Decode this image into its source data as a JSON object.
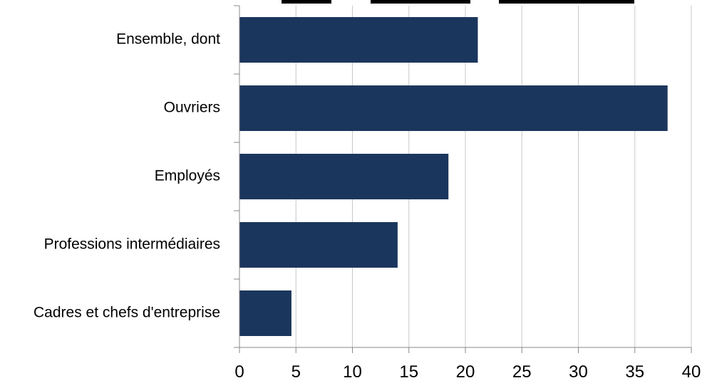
{
  "chart_data": {
    "type": "bar",
    "orientation": "horizontal",
    "title": "",
    "xlabel": "",
    "ylabel": "",
    "categories": [
      "Ensemble, dont",
      "Ouvriers",
      "Employés",
      "Professions intermédiaires",
      "Cadres et chefs d'entreprise"
    ],
    "values": [
      21.1,
      37.9,
      18.5,
      14.0,
      4.6
    ],
    "xlim": [
      0,
      40
    ],
    "xticks": [
      0,
      5,
      10,
      15,
      20,
      25,
      30,
      35,
      40
    ],
    "xtick_labels": [
      "0",
      "5",
      "10",
      "15",
      "20",
      "25",
      "30",
      "35",
      "40"
    ],
    "grid": "vertical",
    "legend": "none",
    "colors": {
      "bar": "#1b365d",
      "grid": "#c8c8c8",
      "axis": "#888888"
    }
  }
}
